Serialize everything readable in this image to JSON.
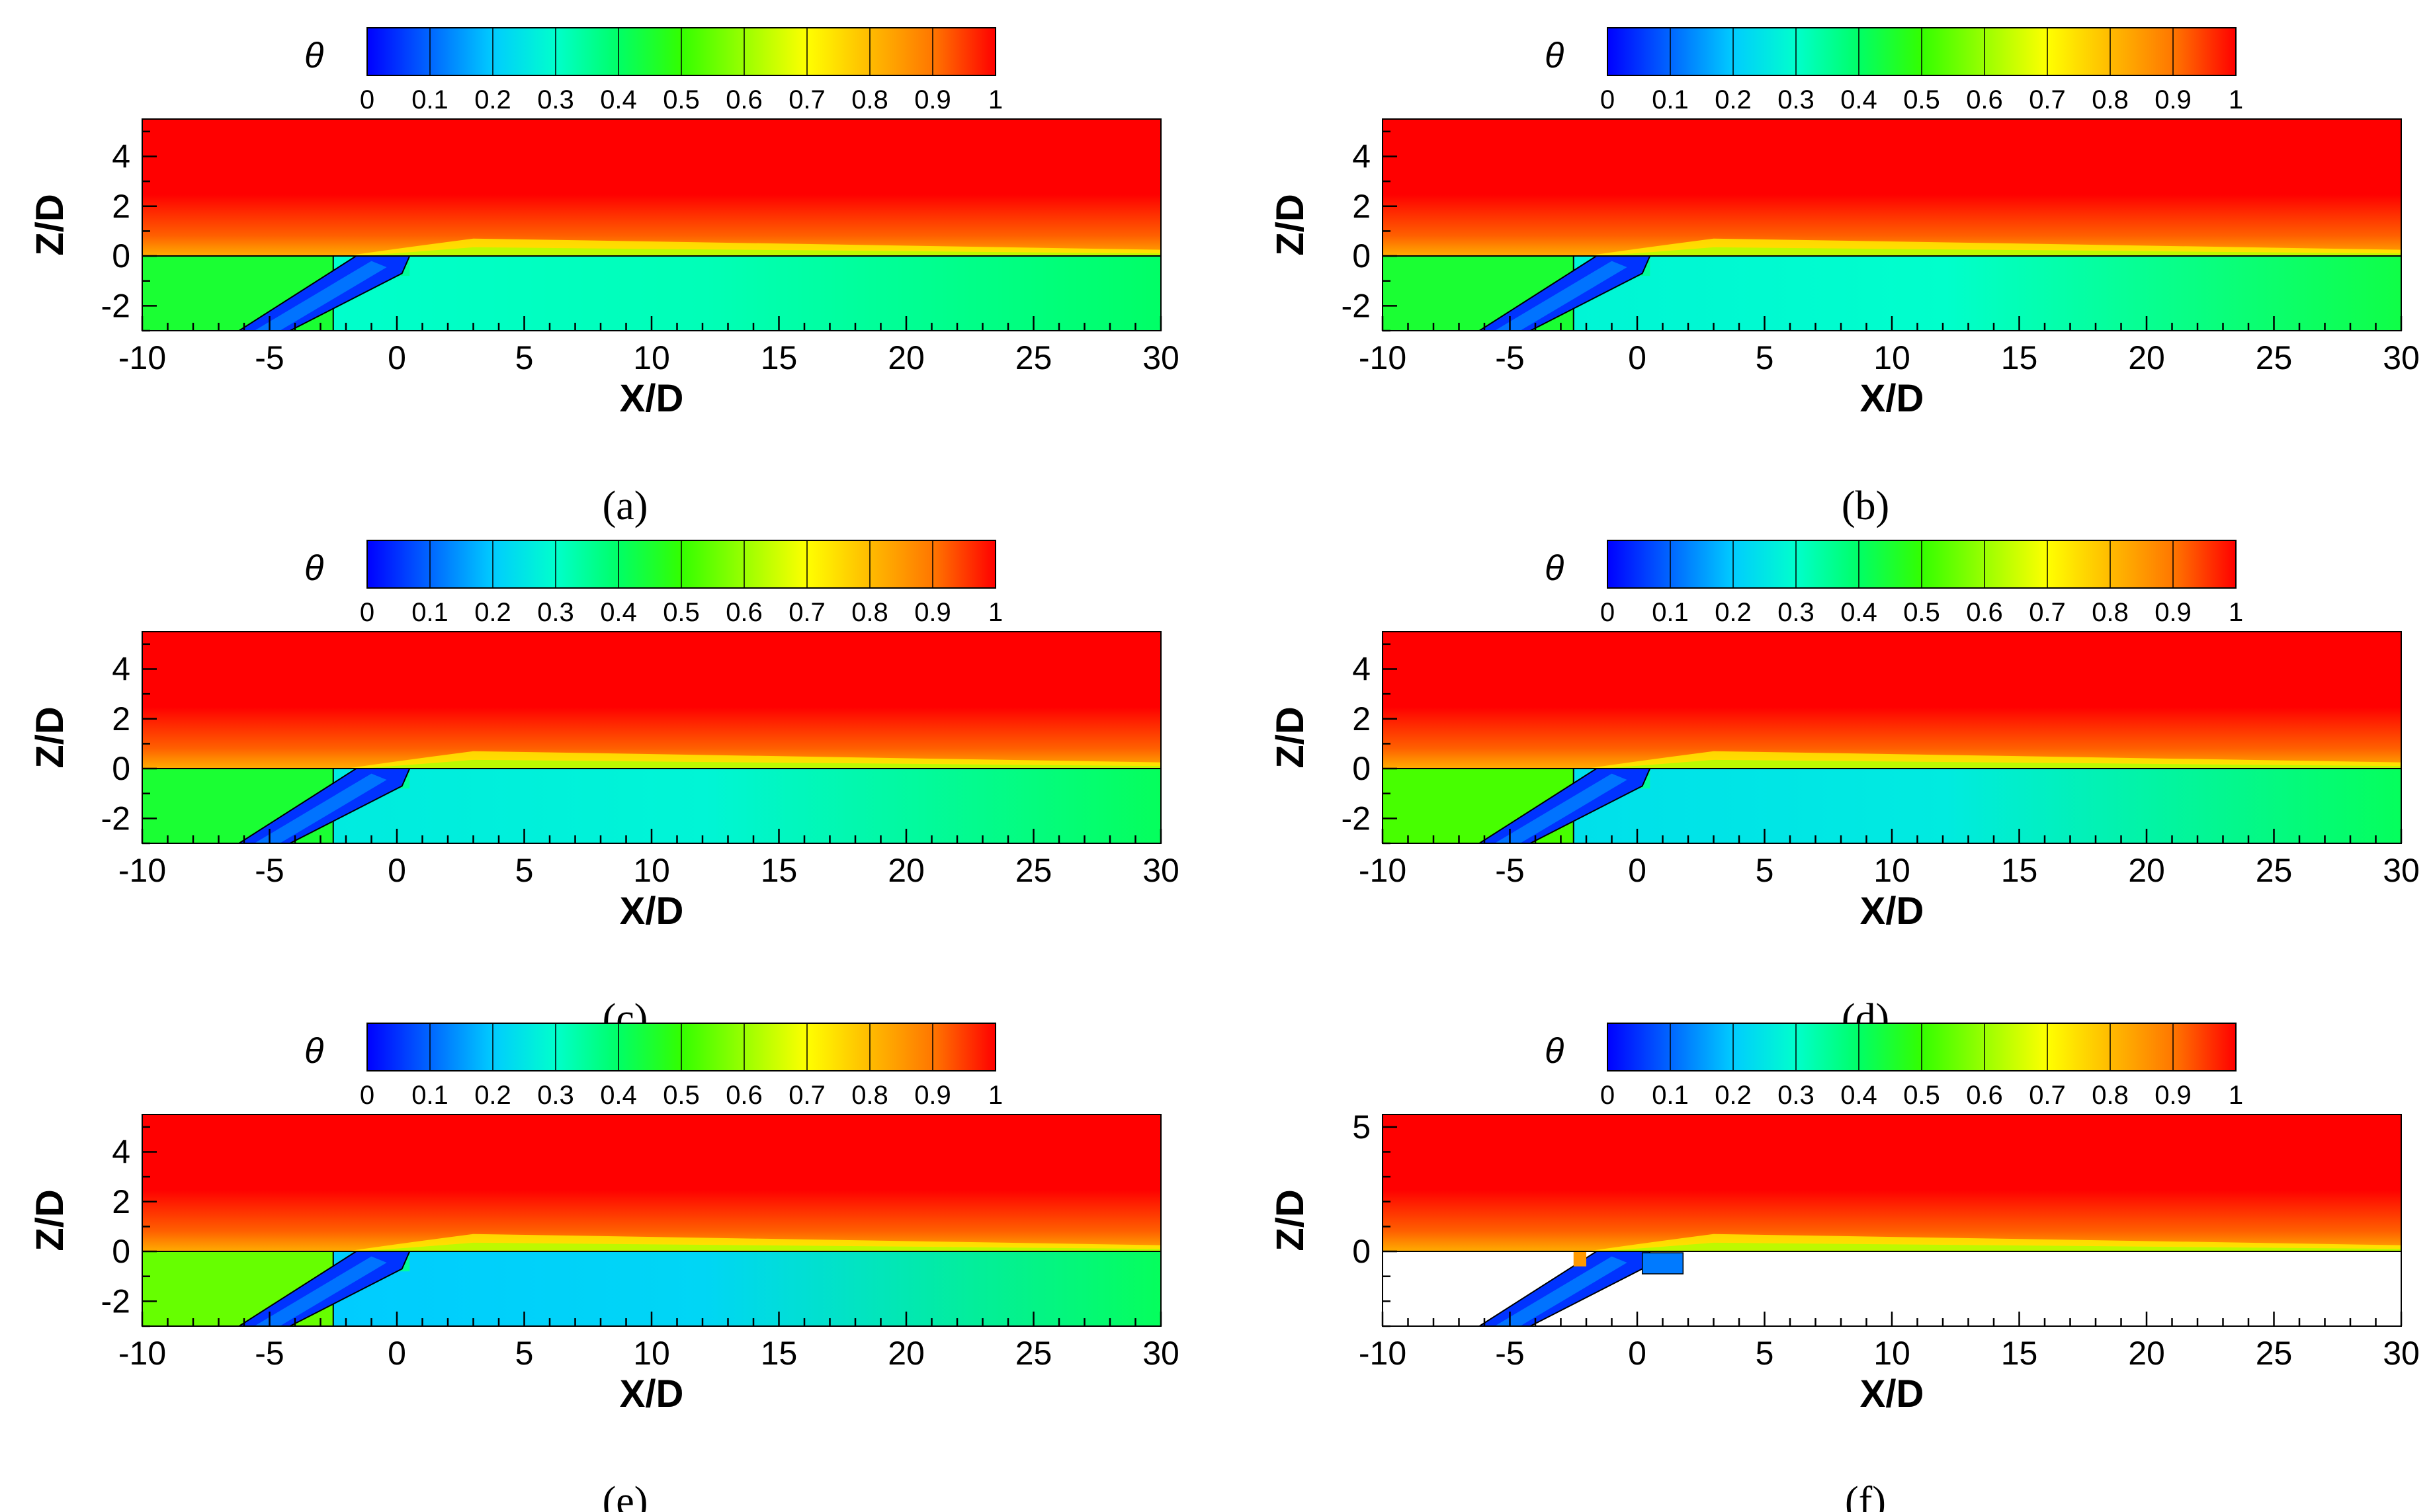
{
  "colorbar": {
    "symbol": "θ",
    "ticks": [
      "0",
      "0.1",
      "0.2",
      "0.3",
      "0.4",
      "0.5",
      "0.6",
      "0.7",
      "0.8",
      "0.9",
      "1"
    ],
    "colors": [
      "#0000ff",
      "#0066ff",
      "#00ccff",
      "#00ffcc",
      "#00ff66",
      "#33ff00",
      "#99ff00",
      "#ffff00",
      "#ffbb00",
      "#ff7700",
      "#ff0000"
    ]
  },
  "axes": {
    "xlabel": "X/D",
    "ylabel": "Z/D",
    "xticks": [
      "-10",
      "-5",
      "0",
      "5",
      "10",
      "15",
      "20",
      "25",
      "30"
    ],
    "yticks": [
      "-2",
      "0",
      "2",
      "4"
    ],
    "yticks_f": [
      "0",
      "5"
    ]
  },
  "chart_data": [
    {
      "type": "heatmap",
      "label": "(a)",
      "letter": "a",
      "variable": "θ",
      "xlim": [
        -10,
        30
      ],
      "ylim": [
        -3,
        5.5
      ],
      "xlabel": "X/D",
      "ylabel": "Z/D",
      "upstream_theta": 0.45,
      "downstream_theta": 0.35,
      "wake_theta": 0.3
    },
    {
      "type": "heatmap",
      "label": "(b)",
      "letter": "b",
      "variable": "θ",
      "xlim": [
        -10,
        30
      ],
      "ylim": [
        -3,
        5.5
      ],
      "xlabel": "X/D",
      "ylabel": "Z/D",
      "upstream_theta": 0.45,
      "downstream_theta": 0.38,
      "wake_theta": 0.28
    },
    {
      "type": "heatmap",
      "label": "(c)",
      "letter": "c",
      "variable": "θ",
      "xlim": [
        -10,
        30
      ],
      "ylim": [
        -3,
        5.5
      ],
      "xlabel": "X/D",
      "ylabel": "Z/D",
      "upstream_theta": 0.45,
      "downstream_theta": 0.36,
      "wake_theta": 0.26
    },
    {
      "type": "heatmap",
      "label": "(d)",
      "letter": "d",
      "variable": "θ",
      "xlim": [
        -10,
        30
      ],
      "ylim": [
        -3,
        5.5
      ],
      "xlabel": "X/D",
      "ylabel": "Z/D",
      "upstream_theta": 0.52,
      "downstream_theta": 0.36,
      "wake_theta": 0.24
    },
    {
      "type": "heatmap",
      "label": "(e)",
      "letter": "e",
      "variable": "θ",
      "xlim": [
        -10,
        30
      ],
      "ylim": [
        -3,
        5.5
      ],
      "xlabel": "X/D",
      "ylabel": "Z/D",
      "upstream_theta": 0.55,
      "downstream_theta": 0.36,
      "wake_theta": 0.2
    },
    {
      "type": "heatmap",
      "label": "(f)",
      "letter": "f",
      "variable": "θ",
      "xlim": [
        -10,
        30
      ],
      "ylim": [
        -3,
        5.5
      ],
      "xlabel": "X/D",
      "ylabel": "Z/D",
      "upstream_theta": null,
      "downstream_theta": null,
      "wake_theta": null
    }
  ]
}
